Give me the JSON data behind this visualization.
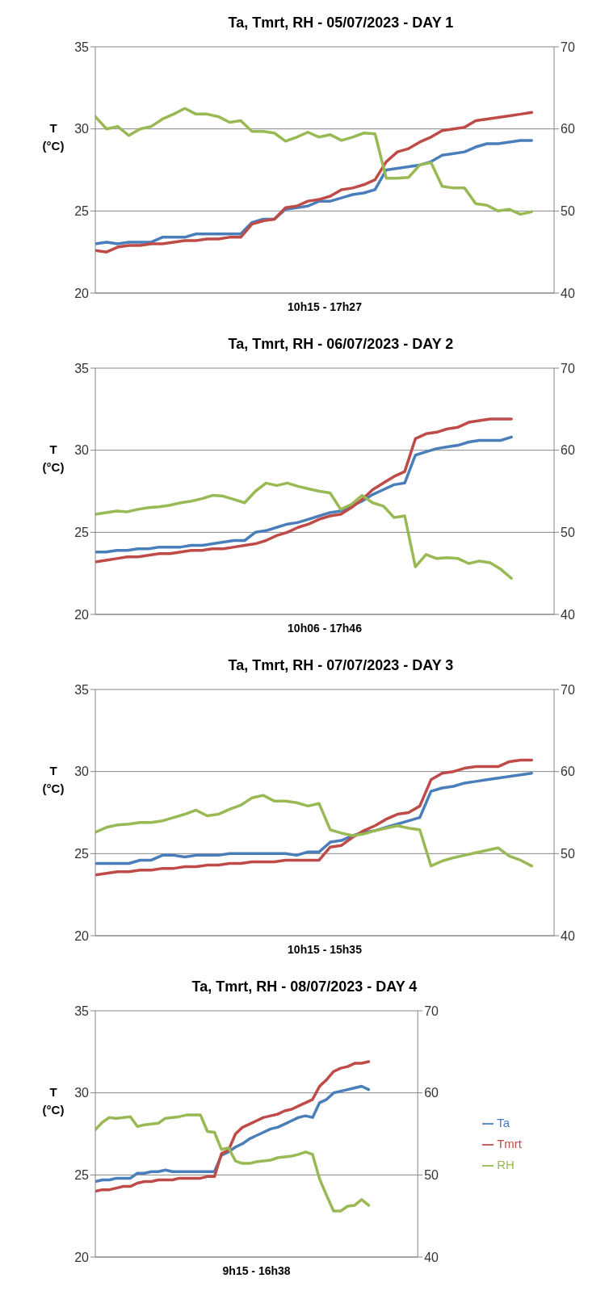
{
  "chart_data": [
    {
      "type": "line",
      "title": "Ta, Tmrt, RH - 05/07/2023 - DAY 1",
      "xlabel": "10h15 - 17h27",
      "ylabel": "T (°C)",
      "categories": [
        null,
        null,
        null,
        null,
        null,
        null,
        null,
        null,
        null,
        null,
        null,
        null,
        null,
        null,
        null,
        null,
        null,
        null,
        null,
        null,
        null,
        null,
        null,
        null,
        null,
        null,
        null,
        null,
        null,
        null,
        null,
        null,
        null,
        null,
        null,
        null,
        null,
        null,
        null,
        null,
        null,
        null
      ],
      "ylim": [
        20,
        35
      ],
      "yticks": [
        20,
        25,
        30,
        35
      ],
      "y2lim": [
        40,
        70
      ],
      "y2ticks": [
        40,
        50,
        60,
        70
      ],
      "grid": "y",
      "legend": false,
      "marker": "none",
      "line_style": "solid",
      "series": [
        {
          "color": "#4a7ebb",
          "values": [
            23.0,
            23.1,
            23.0,
            23.1,
            23.1,
            23.1,
            23.4,
            23.4,
            23.4,
            23.6,
            23.6,
            23.6,
            23.6,
            23.6,
            24.3,
            24.5,
            24.5,
            25.1,
            25.2,
            25.3,
            25.6,
            25.6,
            25.8,
            26.0,
            26.1,
            26.3,
            27.5,
            27.6,
            27.7,
            27.8,
            28.0,
            28.4,
            28.5,
            28.6,
            28.9,
            29.1,
            29.1,
            29.2,
            29.3,
            29.3,
            null,
            null
          ]
        },
        {
          "color": "#be4b48",
          "values": [
            22.6,
            22.5,
            22.8,
            22.9,
            22.9,
            23.0,
            23.0,
            23.1,
            23.2,
            23.2,
            23.3,
            23.3,
            23.4,
            23.4,
            24.2,
            24.4,
            24.5,
            25.2,
            25.3,
            25.6,
            25.7,
            25.9,
            26.3,
            26.4,
            26.6,
            26.9,
            28.0,
            28.6,
            28.8,
            29.2,
            29.5,
            29.9,
            30.0,
            30.1,
            30.5,
            30.6,
            30.7,
            30.8,
            30.9,
            31.0,
            null,
            null
          ]
        },
        {
          "color": "#98b954",
          "axis": "y2",
          "values": [
            61.5,
            60.0,
            60.3,
            59.2,
            60.0,
            60.3,
            61.2,
            61.8,
            62.5,
            61.8,
            61.8,
            61.5,
            60.8,
            61.0,
            59.7,
            59.7,
            59.5,
            58.5,
            59.0,
            59.6,
            59.0,
            59.3,
            58.6,
            59.0,
            59.5,
            59.4,
            54.0,
            54.0,
            54.1,
            55.6,
            55.9,
            53.0,
            52.8,
            52.8,
            50.9,
            50.7,
            50.0,
            50.2,
            49.6,
            49.9,
            null,
            null
          ]
        }
      ]
    },
    {
      "type": "line",
      "title": "Ta, Tmrt, RH - 06/07/2023 - DAY 2",
      "xlabel": "10h06 - 17h46",
      "ylabel": "T (°C)",
      "categories": [
        null,
        null,
        null,
        null,
        null,
        null,
        null,
        null,
        null,
        null,
        null,
        null,
        null,
        null,
        null,
        null,
        null,
        null,
        null,
        null,
        null,
        null,
        null,
        null,
        null,
        null,
        null,
        null,
        null,
        null,
        null,
        null,
        null,
        null,
        null,
        null,
        null,
        null,
        null,
        null,
        null,
        null,
        null,
        null
      ],
      "ylim": [
        20,
        35
      ],
      "yticks": [
        20,
        25,
        30,
        35
      ],
      "y2lim": [
        40,
        70
      ],
      "y2ticks": [
        40,
        50,
        60,
        70
      ],
      "grid": "y",
      "legend": false,
      "marker": "none",
      "line_style": "solid",
      "series": [
        {
          "color": "#4a7ebb",
          "values": [
            23.8,
            23.8,
            23.9,
            23.9,
            24.0,
            24.0,
            24.1,
            24.1,
            24.1,
            24.2,
            24.2,
            24.3,
            24.4,
            24.5,
            24.5,
            25.0,
            25.1,
            25.3,
            25.5,
            25.6,
            25.8,
            26.0,
            26.2,
            26.3,
            26.6,
            26.9,
            27.3,
            27.6,
            27.9,
            28.0,
            29.7,
            29.9,
            30.1,
            30.2,
            30.3,
            30.5,
            30.6,
            30.6,
            30.6,
            30.8,
            null,
            null,
            null,
            null
          ]
        },
        {
          "color": "#be4b48",
          "values": [
            23.2,
            23.3,
            23.4,
            23.5,
            23.5,
            23.6,
            23.7,
            23.7,
            23.8,
            23.9,
            23.9,
            24.0,
            24.0,
            24.1,
            24.2,
            24.3,
            24.5,
            24.8,
            25.0,
            25.3,
            25.5,
            25.8,
            26.0,
            26.1,
            26.5,
            27.0,
            27.6,
            28.0,
            28.4,
            28.7,
            30.7,
            31.0,
            31.1,
            31.3,
            31.4,
            31.7,
            31.8,
            31.9,
            31.9,
            31.9,
            null,
            null,
            null,
            null
          ]
        },
        {
          "color": "#98b954",
          "axis": "y2",
          "values": [
            52.2,
            52.4,
            52.6,
            52.5,
            52.8,
            53.0,
            53.1,
            53.3,
            53.6,
            53.8,
            54.1,
            54.5,
            54.4,
            54.0,
            53.6,
            55.0,
            56.0,
            55.7,
            56.0,
            55.6,
            55.3,
            55.0,
            54.8,
            52.8,
            53.4,
            54.5,
            53.6,
            53.2,
            51.8,
            52.0,
            45.8,
            47.3,
            46.8,
            46.9,
            46.8,
            46.2,
            46.5,
            46.3,
            45.5,
            44.4,
            null,
            null,
            null,
            null
          ]
        }
      ]
    },
    {
      "type": "line",
      "title": "Ta, Tmrt, RH - 07/07/2023 - DAY 3",
      "xlabel": "10h15 - 15h35",
      "ylabel": "T (°C)",
      "categories": [
        null,
        null,
        null,
        null,
        null,
        null,
        null,
        null,
        null,
        null,
        null,
        null,
        null,
        null,
        null,
        null,
        null,
        null,
        null,
        null,
        null,
        null,
        null,
        null,
        null,
        null,
        null,
        null,
        null,
        null,
        null,
        null,
        null,
        null,
        null,
        null,
        null,
        null,
        null,
        null,
        null,
        null
      ],
      "ylim": [
        20,
        35
      ],
      "yticks": [
        20,
        25,
        30,
        35
      ],
      "y2lim": [
        40,
        70
      ],
      "y2ticks": [
        40,
        50,
        60,
        70
      ],
      "grid": "y",
      "legend": false,
      "marker": "none",
      "line_style": "solid",
      "series": [
        {
          "color": "#4a7ebb",
          "values": [
            24.4,
            24.4,
            24.4,
            24.4,
            24.6,
            24.6,
            24.9,
            24.9,
            24.8,
            24.9,
            24.9,
            24.9,
            25.0,
            25.0,
            25.0,
            25.0,
            25.0,
            25.0,
            24.9,
            25.1,
            25.1,
            25.7,
            25.8,
            26.1,
            26.3,
            26.4,
            26.6,
            26.8,
            27.0,
            27.2,
            28.8,
            29.0,
            29.1,
            29.3,
            29.4,
            29.5,
            29.6,
            29.7,
            29.8,
            29.9,
            null,
            null
          ]
        },
        {
          "color": "#be4b48",
          "values": [
            23.7,
            23.8,
            23.9,
            23.9,
            24.0,
            24.0,
            24.1,
            24.1,
            24.2,
            24.2,
            24.3,
            24.3,
            24.4,
            24.4,
            24.5,
            24.5,
            24.5,
            24.6,
            24.6,
            24.6,
            24.6,
            25.4,
            25.5,
            26.0,
            26.4,
            26.7,
            27.1,
            27.4,
            27.5,
            27.9,
            29.5,
            29.9,
            30.0,
            30.2,
            30.3,
            30.3,
            30.3,
            30.6,
            30.7,
            30.7,
            null,
            null
          ]
        },
        {
          "color": "#98b954",
          "axis": "y2",
          "values": [
            52.6,
            53.2,
            53.5,
            53.6,
            53.8,
            53.8,
            54.0,
            54.4,
            54.8,
            55.3,
            54.6,
            54.8,
            55.4,
            55.9,
            56.8,
            57.1,
            56.4,
            56.4,
            56.2,
            55.8,
            56.1,
            52.9,
            52.5,
            52.2,
            52.4,
            52.8,
            53.1,
            53.4,
            53.1,
            52.9,
            48.5,
            49.1,
            49.5,
            49.8,
            50.1,
            50.4,
            50.7,
            49.7,
            49.2,
            48.5,
            null,
            null
          ]
        }
      ]
    },
    {
      "type": "line",
      "title": "Ta, Tmrt, RH - 08/07/2023 - DAY 4",
      "xlabel": "9h15 - 16h38",
      "ylabel": "T (°C)",
      "categories": [
        null,
        null,
        null,
        null,
        null,
        null,
        null,
        null,
        null,
        null,
        null,
        null,
        null,
        null,
        null,
        null,
        null,
        null,
        null,
        null,
        null,
        null,
        null,
        null,
        null,
        null,
        null,
        null,
        null,
        null,
        null,
        null,
        null,
        null,
        null,
        null,
        null,
        null,
        null,
        null,
        null,
        null,
        null,
        null,
        null,
        null,
        null
      ],
      "ylim": [
        20,
        35
      ],
      "yticks": [
        20,
        25,
        30,
        35
      ],
      "y2lim": [
        40,
        70
      ],
      "y2ticks": [
        40,
        50,
        60,
        70
      ],
      "grid": "y",
      "legend": "right",
      "marker": "none",
      "line_style": "solid",
      "series": [
        {
          "name": "Ta",
          "color": "#4a7ebb",
          "values": [
            24.6,
            24.7,
            24.7,
            24.8,
            24.8,
            24.8,
            25.1,
            25.1,
            25.2,
            25.2,
            25.3,
            25.2,
            25.2,
            25.2,
            25.2,
            25.2,
            25.2,
            25.2,
            26.2,
            26.4,
            26.7,
            26.9,
            27.2,
            27.4,
            27.6,
            27.8,
            27.9,
            28.1,
            28.3,
            28.5,
            28.6,
            28.5,
            29.4,
            29.6,
            30.0,
            30.1,
            30.2,
            30.3,
            30.4,
            30.2,
            null,
            null,
            null,
            null,
            null,
            null,
            null
          ]
        },
        {
          "name": "Tmrt",
          "color": "#be4b48",
          "values": [
            24.0,
            24.1,
            24.1,
            24.2,
            24.3,
            24.3,
            24.5,
            24.6,
            24.6,
            24.7,
            24.7,
            24.7,
            24.8,
            24.8,
            24.8,
            24.8,
            24.9,
            24.9,
            26.3,
            26.5,
            27.5,
            27.9,
            28.1,
            28.3,
            28.5,
            28.6,
            28.7,
            28.9,
            29.0,
            29.2,
            29.4,
            29.6,
            30.4,
            30.8,
            31.3,
            31.5,
            31.6,
            31.8,
            31.8,
            31.9,
            null,
            null,
            null,
            null,
            null,
            null,
            null
          ]
        },
        {
          "name": "RH",
          "color": "#98b954",
          "axis": "y2",
          "values": [
            55.5,
            56.4,
            57.0,
            56.9,
            57.0,
            57.1,
            55.9,
            56.1,
            56.2,
            56.3,
            56.9,
            57.0,
            57.1,
            57.3,
            57.3,
            57.3,
            55.3,
            55.2,
            53.1,
            53.3,
            51.7,
            51.4,
            51.4,
            51.6,
            51.7,
            51.8,
            52.1,
            52.2,
            52.3,
            52.5,
            52.8,
            52.5,
            49.5,
            47.5,
            45.6,
            45.6,
            46.2,
            46.3,
            47.0,
            46.3,
            null,
            null,
            null,
            null,
            null,
            null,
            null
          ]
        }
      ]
    }
  ]
}
